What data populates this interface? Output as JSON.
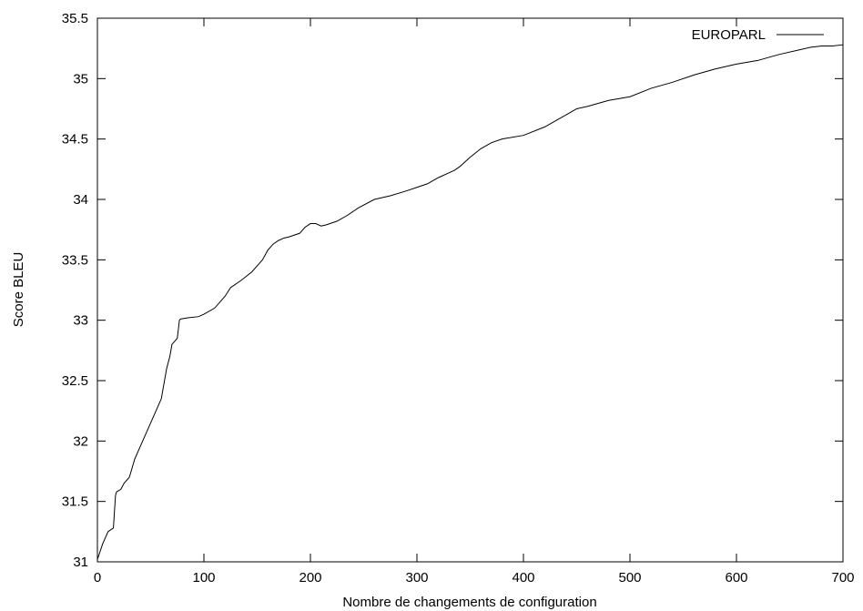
{
  "chart_data": {
    "type": "line",
    "title": "",
    "xlabel": "Nombre de changements de configuration",
    "ylabel": "Score BLEU",
    "xlim": [
      0,
      700
    ],
    "ylim": [
      31,
      35.5
    ],
    "x_ticks": [
      "0",
      "100",
      "200",
      "300",
      "400",
      "500",
      "600",
      "700"
    ],
    "y_ticks": [
      "31",
      "31.5",
      "32",
      "32.5",
      "33",
      "33.5",
      "34",
      "34.5",
      "35",
      "35.5"
    ],
    "grid": false,
    "legend_position": "top-right",
    "series": [
      {
        "name": "EUROPARL",
        "color": "#000000",
        "x": [
          0,
          5,
          10,
          15,
          17,
          18,
          22,
          25,
          30,
          35,
          40,
          45,
          50,
          55,
          60,
          62,
          65,
          68,
          70,
          72,
          75,
          77,
          78,
          85,
          95,
          100,
          110,
          115,
          120,
          125,
          135,
          145,
          150,
          155,
          160,
          165,
          170,
          175,
          180,
          190,
          195,
          200,
          205,
          210,
          215,
          225,
          235,
          245,
          260,
          275,
          290,
          300,
          310,
          320,
          330,
          335,
          340,
          350,
          360,
          370,
          380,
          400,
          420,
          440,
          450,
          460,
          480,
          500,
          520,
          540,
          560,
          580,
          600,
          620,
          640,
          660,
          670,
          680,
          690,
          700
        ],
        "y": [
          31.02,
          31.15,
          31.25,
          31.28,
          31.55,
          31.58,
          31.6,
          31.65,
          31.7,
          31.85,
          31.95,
          32.05,
          32.15,
          32.25,
          32.35,
          32.45,
          32.6,
          32.7,
          32.8,
          32.82,
          32.85,
          33.0,
          33.01,
          33.02,
          33.03,
          33.05,
          33.1,
          33.15,
          33.2,
          33.27,
          33.33,
          33.4,
          33.45,
          33.5,
          33.58,
          33.63,
          33.66,
          33.68,
          33.69,
          33.72,
          33.77,
          33.8,
          33.8,
          33.78,
          33.79,
          33.82,
          33.87,
          33.93,
          34.0,
          34.03,
          34.07,
          34.1,
          34.13,
          34.18,
          34.22,
          34.24,
          34.27,
          34.35,
          34.42,
          34.47,
          34.5,
          34.53,
          34.6,
          34.7,
          34.75,
          34.77,
          34.82,
          34.85,
          34.92,
          34.97,
          35.03,
          35.08,
          35.12,
          35.15,
          35.2,
          35.24,
          35.26,
          35.27,
          35.27,
          35.28
        ]
      }
    ]
  }
}
